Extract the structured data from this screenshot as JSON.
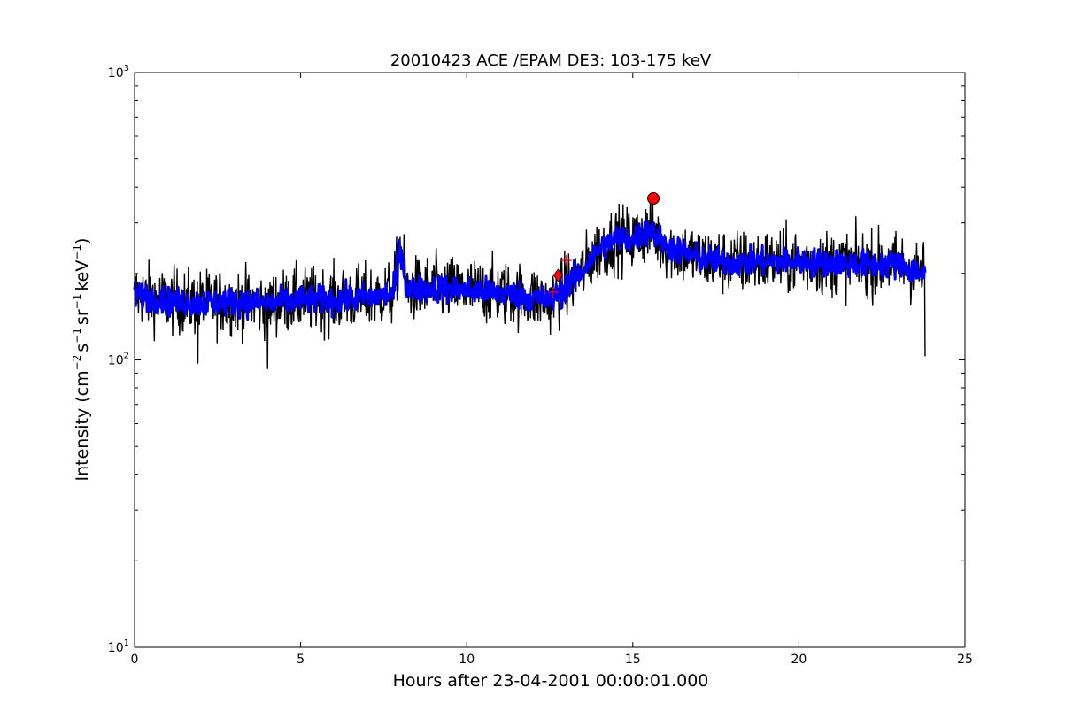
{
  "chart_data": {
    "type": "line",
    "title": "20010423 ACE /EPAM DE3: 103-175 keV",
    "xlabel": "Hours after 23-04-2001 00:00:01.000",
    "ylabel": {
      "prefix": "Intensity (cm",
      "exp1": "−2",
      "mid1": "s",
      "exp2": "−1",
      "mid2": "sr",
      "exp3": "−1",
      "mid3": "keV",
      "exp4": "−1",
      "suffix": ")"
    },
    "xlim": [
      0,
      25
    ],
    "ylim": [
      10,
      1000
    ],
    "yscale": "log",
    "grid": false,
    "x_ticks": [
      0,
      5,
      10,
      15,
      20,
      25
    ],
    "x_tick_labels": [
      "0",
      "5",
      "10",
      "15",
      "20",
      "25"
    ],
    "y_ticks": [
      10,
      100,
      1000
    ],
    "y_tick_labels": [
      {
        "base": "10",
        "exp": "1"
      },
      {
        "base": "10",
        "exp": "2"
      },
      {
        "base": "10",
        "exp": "3"
      }
    ],
    "colors": {
      "raw": "#000000",
      "smoothed": "#0000ff",
      "marker": "#ff0000",
      "marker_edge": "#000000"
    },
    "series": [
      {
        "style": "raw-noisy",
        "color": "#000000",
        "x": [
          0,
          1,
          2,
          3,
          4,
          5,
          6,
          7,
          7.8,
          8.0,
          8.2,
          9,
          10,
          11,
          12,
          12.5,
          13,
          13.5,
          14,
          14.5,
          15,
          15.5,
          16,
          17,
          18,
          19,
          20,
          21,
          22,
          23,
          23.8
        ],
        "y": [
          170,
          160,
          158,
          160,
          157,
          162,
          162,
          165,
          170,
          255,
          175,
          178,
          175,
          172,
          165,
          160,
          180,
          205,
          245,
          265,
          262,
          285,
          250,
          225,
          218,
          220,
          220,
          218,
          215,
          215,
          198
        ],
        "min_spikes": [
          {
            "x": 4.0,
            "y": 93
          },
          {
            "x": 23.8,
            "y": 103
          },
          {
            "x": 1.9,
            "y": 97
          }
        ]
      },
      {
        "style": "smoothed",
        "color": "#0000ff",
        "x": [
          0,
          1,
          2,
          3,
          4,
          5,
          6,
          7,
          7.8,
          8.0,
          8.2,
          9,
          10,
          11,
          12,
          12.5,
          13,
          13.5,
          14,
          14.5,
          15,
          15.5,
          16,
          17,
          18,
          19,
          20,
          21,
          22,
          23,
          23.8
        ],
        "y": [
          170,
          160,
          158,
          160,
          157,
          162,
          162,
          165,
          170,
          255,
          175,
          178,
          175,
          172,
          165,
          160,
          180,
          205,
          245,
          265,
          262,
          285,
          250,
          225,
          218,
          220,
          220,
          218,
          215,
          215,
          198
        ]
      }
    ],
    "markers": [
      {
        "shape": "circle",
        "x": 15.62,
        "y": 365,
        "size": "large"
      },
      {
        "shape": "diamond",
        "x": 12.75,
        "y": 197,
        "size": "small"
      },
      {
        "shape": "plus",
        "x": 13.0,
        "y": 222,
        "size": "small"
      },
      {
        "shape": "plus",
        "x": 12.6,
        "y": 172,
        "size": "small"
      }
    ]
  }
}
